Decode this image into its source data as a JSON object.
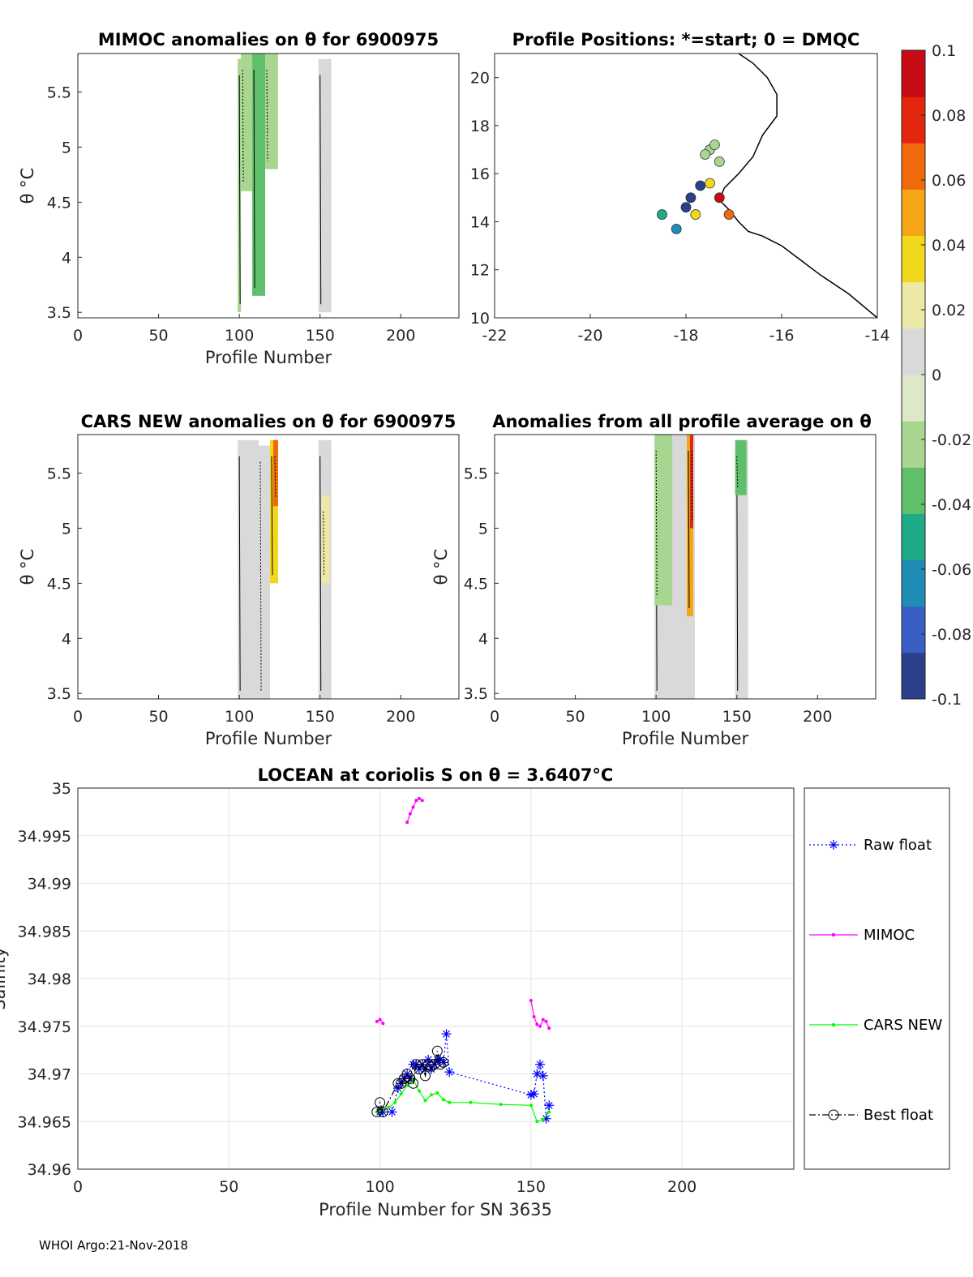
{
  "footer": "WHOI Argo:21-Nov-2018",
  "colorbar": {
    "ticks": [
      "0.1",
      "0.08",
      "0.06",
      "0.04",
      "0.02",
      "0",
      "-0.02",
      "-0.04",
      "-0.06",
      "-0.08",
      "-0.1"
    ],
    "range": [
      -0.1,
      0.1
    ],
    "colormap": [
      "#2b3f8a",
      "#3a5fc4",
      "#1f8cb5",
      "#1faa88",
      "#5fbf6a",
      "#a8d690",
      "#dde8c8",
      "#d9d9d9",
      "#ece8a6",
      "#f2d81a",
      "#f5a516",
      "#f06a0c",
      "#e3260e",
      "#c80a14"
    ]
  },
  "chart_data": [
    {
      "type": "heatmap",
      "title": "MIMOC anomalies on θ  for 6900975",
      "xlabel": "Profile Number",
      "ylabel": "θ °C",
      "xlim": [
        0,
        236
      ],
      "ylim": [
        3.45,
        5.85
      ],
      "xticks": [
        "0",
        "50",
        "100",
        "150",
        "200"
      ],
      "yticks": [
        "3.5",
        "4",
        "4.5",
        "5",
        "5.5"
      ],
      "data_columns": [
        {
          "x": [
            99,
            101
          ],
          "theta": [
            3.5,
            5.8
          ],
          "anomaly": -0.015
        },
        {
          "x": [
            101,
            108
          ],
          "theta": [
            4.6,
            5.85
          ],
          "anomaly": -0.025
        },
        {
          "x": [
            108,
            116
          ],
          "theta": [
            3.65,
            5.85
          ],
          "anomaly": -0.04
        },
        {
          "x": [
            116,
            124
          ],
          "theta": [
            4.8,
            5.85
          ],
          "anomaly": -0.02
        },
        {
          "x": [
            149,
            157
          ],
          "theta": [
            3.5,
            5.8
          ],
          "anomaly": 0.0
        }
      ]
    },
    {
      "type": "scatter",
      "title": "Profile Positions: *=start; 0 = DMQC",
      "xlim": [
        -22,
        -14
      ],
      "ylim": [
        10,
        21
      ],
      "xticks": [
        "-22",
        "-20",
        "-18",
        "-16",
        "-14"
      ],
      "yticks": [
        "10",
        "12",
        "14",
        "16",
        "18",
        "20"
      ],
      "points": [
        {
          "lon": -17.5,
          "lat": 17.0,
          "anomaly": -0.02
        },
        {
          "lon": -17.4,
          "lat": 17.2,
          "anomaly": -0.02
        },
        {
          "lon": -17.6,
          "lat": 16.8,
          "anomaly": -0.02
        },
        {
          "lon": -17.3,
          "lat": 16.5,
          "anomaly": -0.02
        },
        {
          "lon": -17.7,
          "lat": 15.5,
          "anomaly": -0.09
        },
        {
          "lon": -17.9,
          "lat": 15.0,
          "anomaly": -0.09
        },
        {
          "lon": -18.0,
          "lat": 14.6,
          "anomaly": -0.09
        },
        {
          "lon": -17.8,
          "lat": 14.3,
          "anomaly": 0.04
        },
        {
          "lon": -17.3,
          "lat": 15.0,
          "anomaly": 0.09
        },
        {
          "lon": -17.1,
          "lat": 14.3,
          "anomaly": 0.06
        },
        {
          "lon": -18.5,
          "lat": 14.3,
          "anomaly": -0.05
        },
        {
          "lon": -18.2,
          "lat": 13.7,
          "anomaly": -0.06
        },
        {
          "lon": -17.5,
          "lat": 15.6,
          "anomaly": 0.03
        }
      ]
    },
    {
      "type": "heatmap",
      "title": "CARS NEW anomalies on θ for 6900975",
      "xlabel": "Profile Number",
      "ylabel": "θ °C",
      "xlim": [
        0,
        236
      ],
      "ylim": [
        3.45,
        5.85
      ],
      "xticks": [
        "0",
        "50",
        "100",
        "150",
        "200"
      ],
      "yticks": [
        "3.5",
        "4",
        "4.5",
        "5",
        "5.5"
      ],
      "data_columns": [
        {
          "x": [
            99,
            112
          ],
          "theta": [
            3.45,
            5.8
          ],
          "anomaly": 0.0
        },
        {
          "x": [
            112,
            119
          ],
          "theta": [
            3.45,
            5.75
          ],
          "anomaly": 0.0
        },
        {
          "x": [
            119,
            124
          ],
          "theta": [
            4.5,
            5.8
          ],
          "anomaly": 0.04
        },
        {
          "x": [
            121,
            124
          ],
          "theta": [
            5.2,
            5.8
          ],
          "anomaly": 0.07
        },
        {
          "x": [
            149,
            157
          ],
          "theta": [
            3.45,
            5.8
          ],
          "anomaly": 0.01
        },
        {
          "x": [
            151,
            156
          ],
          "theta": [
            4.5,
            5.3
          ],
          "anomaly": 0.025
        }
      ]
    },
    {
      "type": "heatmap",
      "title": "Anomalies from all profile average on θ",
      "xlabel": "Profile Number",
      "ylabel": "θ °C",
      "xlim": [
        0,
        236
      ],
      "ylim": [
        3.45,
        5.85
      ],
      "xticks": [
        "0",
        "50",
        "100",
        "150",
        "200"
      ],
      "yticks": [
        "3.5",
        "4",
        "4.5",
        "5",
        "5.5"
      ],
      "data_columns": [
        {
          "x": [
            99,
            124
          ],
          "theta": [
            3.45,
            5.85
          ],
          "anomaly": 0.0
        },
        {
          "x": [
            99,
            110
          ],
          "theta": [
            4.3,
            5.85
          ],
          "anomaly": -0.015
        },
        {
          "x": [
            119,
            123
          ],
          "theta": [
            4.2,
            5.85
          ],
          "anomaly": 0.05
        },
        {
          "x": [
            121,
            123
          ],
          "theta": [
            5.0,
            5.85
          ],
          "anomaly": 0.08
        },
        {
          "x": [
            149,
            157
          ],
          "theta": [
            3.45,
            5.8
          ],
          "anomaly": 0.0
        },
        {
          "x": [
            149,
            156
          ],
          "theta": [
            5.3,
            5.8
          ],
          "anomaly": -0.035
        }
      ]
    },
    {
      "type": "line",
      "title": "LOCEAN at coriolis S on θ = 3.6407°C",
      "xlabel": "Profile Number for SN 3635",
      "ylabel": "Salinity",
      "xlim": [
        0,
        237
      ],
      "ylim": [
        34.96,
        35.0
      ],
      "xticks": [
        "0",
        "50",
        "100",
        "150",
        "200"
      ],
      "yticks": [
        "34.96",
        "34.965",
        "34.97",
        "34.975",
        "34.98",
        "34.985",
        "34.99",
        "34.995",
        "35"
      ],
      "grid": true,
      "legend": "outside-right",
      "series": [
        {
          "name": "Raw float",
          "color": "#0000ff",
          "marker": "star",
          "style": "dotted",
          "x": [
            100,
            101,
            104,
            106,
            107,
            108,
            109,
            110,
            111,
            112,
            113,
            114,
            115,
            116,
            117,
            118,
            119,
            120,
            121,
            122,
            123,
            150,
            151,
            152,
            153,
            154,
            155,
            156
          ],
          "y": [
            34.966,
            34.966,
            34.966,
            34.9685,
            34.969,
            34.9695,
            34.97,
            34.9695,
            34.971,
            34.971,
            34.9705,
            34.971,
            34.9705,
            34.9715,
            34.9705,
            34.971,
            34.9715,
            34.9715,
            34.9712,
            34.9742,
            34.9702,
            34.9678,
            34.9679,
            34.97,
            34.971,
            34.9698,
            34.9653,
            34.9667
          ]
        },
        {
          "name": "MIMOC",
          "color": "#ff00ff",
          "marker": "dot",
          "style": "solid",
          "segments": [
            {
              "x": [
                99,
                100,
                101
              ],
              "y": [
                34.9755,
                34.9757,
                34.9753
              ]
            },
            {
              "x": [
                109,
                110,
                111,
                112,
                113,
                114
              ],
              "y": [
                34.9964,
                34.9973,
                34.998,
                34.9987,
                34.9989,
                34.9987
              ]
            },
            {
              "x": [
                150,
                151,
                152,
                153,
                154,
                155,
                156
              ],
              "y": [
                34.9777,
                34.976,
                34.9752,
                34.975,
                34.9757,
                34.9755,
                34.9748
              ]
            }
          ]
        },
        {
          "name": "CARS NEW",
          "color": "#00ff00",
          "marker": "dot",
          "style": "solid",
          "x": [
            99,
            101,
            103,
            105,
            107,
            109,
            111,
            113,
            115,
            117,
            119,
            121,
            123,
            130,
            140,
            150,
            152,
            154,
            156
          ],
          "y": [
            34.966,
            34.9662,
            34.9665,
            34.967,
            34.9679,
            34.9688,
            34.9694,
            34.9682,
            34.9672,
            34.9678,
            34.968,
            34.9673,
            34.967,
            34.967,
            34.9668,
            34.9667,
            34.965,
            34.9652,
            34.966
          ]
        },
        {
          "name": "Best float",
          "color": "#000000",
          "marker": "circle",
          "style": "dashdot",
          "x": [
            99,
            100,
            101,
            106,
            107,
            108,
            109,
            110,
            111,
            112,
            113,
            114,
            115,
            116,
            117,
            118,
            119,
            120,
            121
          ],
          "y": [
            34.966,
            34.967,
            34.966,
            34.969,
            34.969,
            34.9695,
            34.97,
            34.9695,
            34.969,
            34.971,
            34.9705,
            34.971,
            34.9698,
            34.971,
            34.9708,
            34.971,
            34.9724,
            34.971,
            34.9712
          ]
        }
      ]
    }
  ]
}
